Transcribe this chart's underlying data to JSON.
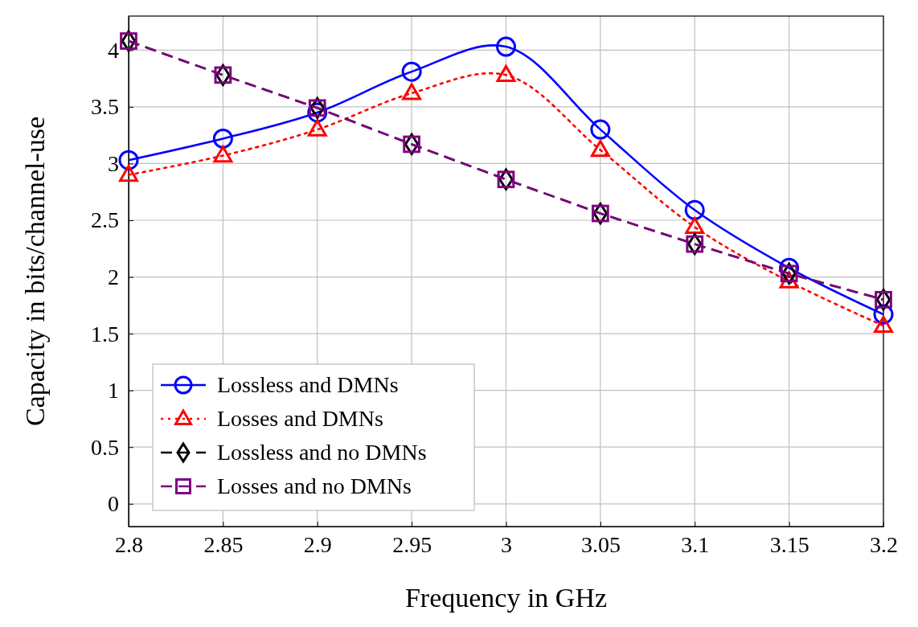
{
  "chart_data": {
    "type": "line",
    "xlabel": "Frequency in GHz",
    "ylabel": "Capacity in bits/channel-use",
    "x": [
      2.8,
      2.85,
      2.9,
      2.95,
      3.0,
      3.05,
      3.1,
      3.15,
      3.2
    ],
    "xlim": [
      2.8,
      3.2
    ],
    "xticks": [
      2.8,
      2.85,
      2.9,
      2.95,
      3,
      3.05,
      3.1,
      3.15,
      3.2
    ],
    "ylim": [
      -0.2,
      4.3
    ],
    "yticks": [
      0,
      0.5,
      1,
      1.5,
      2,
      2.5,
      3,
      3.5,
      4
    ],
    "grid": true,
    "legend": "bottom left",
    "series": [
      {
        "name": "Lossless and DMNs",
        "color": "#0000ff",
        "marker": "circle",
        "line_style": "solid",
        "values": [
          3.03,
          3.22,
          3.45,
          3.81,
          4.03,
          3.3,
          2.59,
          2.08,
          1.67
        ]
      },
      {
        "name": "Losses and DMNs",
        "color": "#ff0000",
        "marker": "triangle",
        "line_style": "dotted",
        "values": [
          2.9,
          3.07,
          3.3,
          3.62,
          3.78,
          3.12,
          2.44,
          1.96,
          1.57
        ]
      },
      {
        "name": "Lossless and no DMNs",
        "color": "#000000",
        "marker": "diamond",
        "line_style": "dashed",
        "values": [
          4.08,
          3.78,
          3.49,
          3.17,
          2.86,
          2.56,
          2.29,
          2.03,
          1.8
        ]
      },
      {
        "name": "Losses and no DMNs",
        "color": "#800080",
        "marker": "square",
        "line_style": "dashed",
        "values": [
          4.08,
          3.78,
          3.49,
          3.17,
          2.86,
          2.56,
          2.29,
          2.03,
          1.8
        ]
      }
    ]
  }
}
